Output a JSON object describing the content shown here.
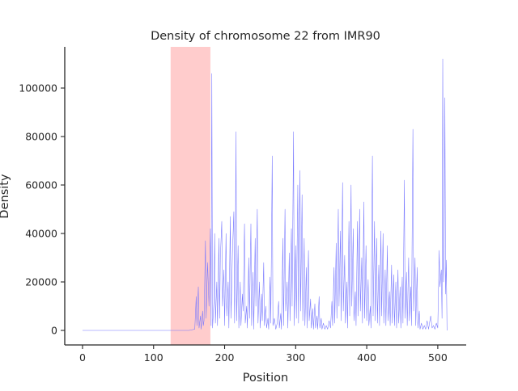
{
  "chart_data": {
    "type": "line",
    "title": "Density of chromosome 22 from IMR90",
    "xlabel": "Position",
    "ylabel": "Density",
    "xlim": [
      -25,
      540
    ],
    "ylim": [
      -6000,
      117000
    ],
    "xticks": [
      0,
      100,
      200,
      300,
      400,
      500
    ],
    "yticks": [
      0,
      20000,
      40000,
      60000,
      80000,
      100000
    ],
    "highlight": {
      "start": 124,
      "end": 180,
      "color": "#ffcccc"
    },
    "series": [
      {
        "color": "#7777ff",
        "points": [
          [
            0,
            0
          ],
          [
            150,
            0
          ],
          [
            158,
            500
          ],
          [
            160,
            14000
          ],
          [
            161,
            2000
          ],
          [
            163,
            18000
          ],
          [
            164,
            1000
          ],
          [
            166,
            6000
          ],
          [
            167,
            500
          ],
          [
            169,
            8000
          ],
          [
            170,
            2000
          ],
          [
            171,
            4000
          ],
          [
            173,
            37000
          ],
          [
            174,
            5000
          ],
          [
            176,
            28000
          ],
          [
            178,
            10000
          ],
          [
            180,
            42000
          ],
          [
            181,
            2000
          ],
          [
            182,
            106000
          ],
          [
            183,
            1000
          ],
          [
            185,
            12000
          ],
          [
            186,
            40000
          ],
          [
            187,
            3000
          ],
          [
            189,
            20000
          ],
          [
            190,
            2000
          ],
          [
            192,
            38000
          ],
          [
            193,
            5000
          ],
          [
            194,
            30000
          ],
          [
            196,
            45000
          ],
          [
            197,
            10000
          ],
          [
            199,
            25000
          ],
          [
            200,
            2000
          ],
          [
            202,
            40000
          ],
          [
            203,
            6000
          ],
          [
            205,
            20000
          ],
          [
            206,
            1000
          ],
          [
            208,
            47000
          ],
          [
            209,
            5000
          ],
          [
            211,
            32000
          ],
          [
            213,
            49000
          ],
          [
            214,
            3000
          ],
          [
            215,
            25000
          ],
          [
            216,
            82000
          ],
          [
            217,
            4000
          ],
          [
            219,
            35000
          ],
          [
            220,
            1000
          ],
          [
            222,
            20000
          ],
          [
            223,
            2000
          ],
          [
            225,
            15000
          ],
          [
            226,
            8000
          ],
          [
            228,
            44000
          ],
          [
            229,
            3000
          ],
          [
            231,
            10000
          ],
          [
            232,
            1000
          ],
          [
            234,
            30000
          ],
          [
            235,
            5000
          ],
          [
            237,
            44000
          ],
          [
            238,
            2000
          ],
          [
            240,
            24000
          ],
          [
            241,
            500
          ],
          [
            243,
            38000
          ],
          [
            244,
            10000
          ],
          [
            246,
            50000
          ],
          [
            247,
            3000
          ],
          [
            249,
            20000
          ],
          [
            250,
            1000
          ],
          [
            252,
            15000
          ],
          [
            253,
            4000
          ],
          [
            255,
            28000
          ],
          [
            256,
            2000
          ],
          [
            258,
            10000
          ],
          [
            259,
            1000
          ],
          [
            261,
            5000
          ],
          [
            262,
            500
          ],
          [
            264,
            22000
          ],
          [
            265,
            3000
          ],
          [
            267,
            72000
          ],
          [
            268,
            2000
          ],
          [
            270,
            5000
          ],
          [
            272,
            500
          ],
          [
            274,
            3000
          ],
          [
            276,
            12000
          ],
          [
            277,
            1000
          ],
          [
            279,
            7000
          ],
          [
            280,
            500
          ],
          [
            282,
            38000
          ],
          [
            283,
            2000
          ],
          [
            285,
            50000
          ],
          [
            286,
            8000
          ],
          [
            288,
            20000
          ],
          [
            289,
            1000
          ],
          [
            291,
            32000
          ],
          [
            292,
            4000
          ],
          [
            294,
            42000
          ],
          [
            295,
            10000
          ],
          [
            297,
            82000
          ],
          [
            298,
            2000
          ],
          [
            300,
            35000
          ],
          [
            301,
            5000
          ],
          [
            303,
            60000
          ],
          [
            304,
            3000
          ],
          [
            306,
            66000
          ],
          [
            307,
            8000
          ],
          [
            309,
            56000
          ],
          [
            310,
            4000
          ],
          [
            312,
            38000
          ],
          [
            313,
            2000
          ],
          [
            315,
            26000
          ],
          [
            316,
            1000
          ],
          [
            318,
            33000
          ],
          [
            319,
            4000
          ],
          [
            321,
            13000
          ],
          [
            322,
            1000
          ],
          [
            324,
            9000
          ],
          [
            325,
            500
          ],
          [
            327,
            11000
          ],
          [
            328,
            1000
          ],
          [
            330,
            6000
          ],
          [
            331,
            500
          ],
          [
            333,
            14000
          ],
          [
            334,
            1000
          ],
          [
            336,
            5000
          ],
          [
            337,
            500
          ],
          [
            339,
            3000
          ],
          [
            341,
            500
          ],
          [
            343,
            2000
          ],
          [
            345,
            500
          ],
          [
            347,
            4000
          ],
          [
            349,
            1000
          ],
          [
            351,
            12000
          ],
          [
            352,
            2000
          ],
          [
            354,
            26000
          ],
          [
            355,
            3000
          ],
          [
            357,
            36000
          ],
          [
            358,
            5000
          ],
          [
            360,
            50000
          ],
          [
            361,
            10000
          ],
          [
            363,
            41000
          ],
          [
            364,
            4000
          ],
          [
            366,
            61000
          ],
          [
            367,
            8000
          ],
          [
            369,
            31000
          ],
          [
            370,
            3000
          ],
          [
            372,
            20000
          ],
          [
            373,
            1000
          ],
          [
            375,
            45000
          ],
          [
            376,
            6000
          ],
          [
            378,
            60000
          ],
          [
            379,
            10000
          ],
          [
            381,
            42000
          ],
          [
            382,
            4000
          ],
          [
            384,
            16000
          ],
          [
            385,
            2000
          ],
          [
            387,
            45000
          ],
          [
            388,
            6000
          ],
          [
            390,
            50000
          ],
          [
            391,
            8000
          ],
          [
            393,
            30000
          ],
          [
            394,
            3000
          ],
          [
            396,
            53000
          ],
          [
            397,
            5000
          ],
          [
            399,
            35000
          ],
          [
            400,
            4000
          ],
          [
            402,
            21000
          ],
          [
            403,
            2000
          ],
          [
            405,
            10000
          ],
          [
            406,
            1000
          ],
          [
            408,
            72000
          ],
          [
            409,
            6000
          ],
          [
            411,
            45000
          ],
          [
            412,
            4000
          ],
          [
            414,
            38000
          ],
          [
            415,
            3000
          ],
          [
            417,
            27000
          ],
          [
            418,
            2000
          ],
          [
            420,
            41000
          ],
          [
            421,
            6000
          ],
          [
            423,
            40000
          ],
          [
            424,
            3000
          ],
          [
            426,
            25000
          ],
          [
            427,
            2000
          ],
          [
            429,
            35000
          ],
          [
            430,
            4000
          ],
          [
            432,
            16000
          ],
          [
            433,
            2000
          ],
          [
            435,
            27000
          ],
          [
            436,
            3000
          ],
          [
            438,
            23000
          ],
          [
            439,
            2000
          ],
          [
            441,
            20000
          ],
          [
            442,
            1000
          ],
          [
            444,
            25000
          ],
          [
            445,
            3000
          ],
          [
            447,
            18000
          ],
          [
            448,
            1000
          ],
          [
            450,
            22000
          ],
          [
            451,
            3000
          ],
          [
            453,
            62000
          ],
          [
            454,
            5000
          ],
          [
            456,
            24000
          ],
          [
            457,
            2000
          ],
          [
            459,
            30000
          ],
          [
            460,
            4000
          ],
          [
            462,
            18000
          ],
          [
            463,
            2000
          ],
          [
            465,
            83000
          ],
          [
            466,
            8000
          ],
          [
            468,
            30000
          ],
          [
            469,
            2000
          ],
          [
            471,
            26000
          ],
          [
            472,
            1000
          ],
          [
            474,
            8000
          ],
          [
            475,
            500
          ],
          [
            477,
            3000
          ],
          [
            479,
            500
          ],
          [
            481,
            2000
          ],
          [
            483,
            500
          ],
          [
            485,
            4000
          ],
          [
            487,
            500
          ],
          [
            490,
            6000
          ],
          [
            492,
            1000
          ],
          [
            494,
            2000
          ],
          [
            496,
            500
          ],
          [
            498,
            3000
          ],
          [
            500,
            1000
          ],
          [
            502,
            33000
          ],
          [
            503,
            18000
          ],
          [
            505,
            25000
          ],
          [
            506,
            5000
          ],
          [
            507,
            112000
          ],
          [
            508,
            20000
          ],
          [
            509,
            30000
          ],
          [
            510,
            96000
          ],
          [
            511,
            15000
          ],
          [
            512,
            29000
          ],
          [
            513,
            0
          ]
        ]
      }
    ]
  }
}
